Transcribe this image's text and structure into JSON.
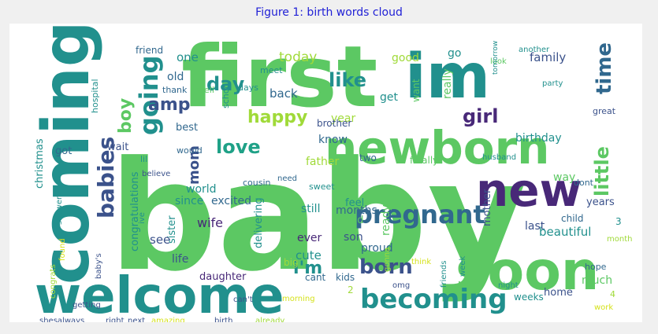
{
  "title": "Figure 1: birth words cloud",
  "palette": {
    "green": "#5cc863",
    "lightgreen": "#a0da39",
    "teal": "#21908d",
    "blue": "#31688e",
    "navy": "#3b528b",
    "indigo": "#482878",
    "yellow": "#d5e21a",
    "cyan": "#1fa187"
  },
  "words": [
    {
      "text": "baby",
      "color": "green"
    },
    {
      "text": "first",
      "color": "green"
    },
    {
      "text": "im",
      "color": "teal"
    },
    {
      "text": "newborn",
      "color": "green"
    },
    {
      "text": "coming",
      "color": "teal"
    },
    {
      "text": "welcome",
      "color": "teal"
    },
    {
      "text": "new",
      "color": "indigo"
    },
    {
      "text": "soon",
      "color": "green"
    },
    {
      "text": "pregnant",
      "color": "blue"
    },
    {
      "text": "becoming",
      "color": "teal"
    },
    {
      "text": "born",
      "color": "navy"
    },
    {
      "text": "i'm",
      "color": "teal"
    },
    {
      "text": "going",
      "color": "teal"
    },
    {
      "text": "babies",
      "color": "navy"
    },
    {
      "text": "boy",
      "color": "green"
    },
    {
      "text": "amp",
      "color": "navy"
    },
    {
      "text": "day",
      "color": "teal"
    },
    {
      "text": "like",
      "color": "teal"
    },
    {
      "text": "time",
      "color": "blue"
    },
    {
      "text": "girl",
      "color": "indigo"
    },
    {
      "text": "little",
      "color": "green"
    },
    {
      "text": "love",
      "color": "cyan"
    },
    {
      "text": "happy",
      "color": "lightgreen"
    },
    {
      "text": "mom",
      "color": "navy"
    },
    {
      "text": "today",
      "color": "lightgreen"
    },
    {
      "text": "congratulations",
      "color": "teal"
    },
    {
      "text": "christmas",
      "color": "teal"
    },
    {
      "text": "one",
      "color": "teal"
    },
    {
      "text": "old",
      "color": "blue"
    },
    {
      "text": "good",
      "color": "lightgreen"
    },
    {
      "text": "family",
      "color": "navy"
    },
    {
      "text": "go",
      "color": "teal"
    },
    {
      "text": "back",
      "color": "blue"
    },
    {
      "text": "year",
      "color": "lightgreen"
    },
    {
      "text": "get",
      "color": "teal"
    },
    {
      "text": "really",
      "color": "green"
    },
    {
      "text": "want",
      "color": "green"
    },
    {
      "text": "know",
      "color": "blue"
    },
    {
      "text": "father",
      "color": "lightgreen"
    },
    {
      "text": "birthday",
      "color": "teal"
    },
    {
      "text": "two",
      "color": "blue"
    },
    {
      "text": "finally",
      "color": "green"
    },
    {
      "text": "brother",
      "color": "navy"
    },
    {
      "text": "friend",
      "color": "blue"
    },
    {
      "text": "wait",
      "color": "navy"
    },
    {
      "text": "got",
      "color": "blue"
    },
    {
      "text": "best",
      "color": "blue"
    },
    {
      "text": "world",
      "color": "teal"
    },
    {
      "text": "since",
      "color": "teal"
    },
    {
      "text": "excited",
      "color": "blue"
    },
    {
      "text": "still",
      "color": "teal"
    },
    {
      "text": "months",
      "color": "blue"
    },
    {
      "text": "way",
      "color": "green"
    },
    {
      "text": "years",
      "color": "navy"
    },
    {
      "text": "mother",
      "color": "navy"
    },
    {
      "text": "wife",
      "color": "indigo"
    },
    {
      "text": "sister",
      "color": "teal"
    },
    {
      "text": "delivering",
      "color": "teal"
    },
    {
      "text": "see",
      "color": "navy"
    },
    {
      "text": "ever",
      "color": "indigo"
    },
    {
      "text": "cute",
      "color": "teal"
    },
    {
      "text": "dad",
      "color": "green"
    },
    {
      "text": "son",
      "color": "navy"
    },
    {
      "text": "ready",
      "color": "green"
    },
    {
      "text": "feel",
      "color": "teal"
    },
    {
      "text": "last",
      "color": "navy"
    },
    {
      "text": "beautiful",
      "color": "teal"
    },
    {
      "text": "proud",
      "color": "blue"
    },
    {
      "text": "life",
      "color": "navy"
    },
    {
      "text": "daughter",
      "color": "indigo"
    },
    {
      "text": "cant",
      "color": "blue"
    },
    {
      "text": "kids",
      "color": "blue"
    },
    {
      "text": "big",
      "color": "lightgreen"
    },
    {
      "text": "much",
      "color": "green"
    },
    {
      "text": "hope",
      "color": "blue"
    },
    {
      "text": "home",
      "color": "navy"
    },
    {
      "text": "weeks",
      "color": "teal"
    },
    {
      "text": "night",
      "color": "teal"
    },
    {
      "text": "morning",
      "color": "yellow"
    },
    {
      "text": "can't",
      "color": "navy"
    },
    {
      "text": "already",
      "color": "lightgreen"
    },
    {
      "text": "birth",
      "color": "navy"
    },
    {
      "text": "amazing",
      "color": "yellow"
    },
    {
      "text": "next",
      "color": "navy"
    },
    {
      "text": "right",
      "color": "navy"
    },
    {
      "text": "shesalways",
      "color": "navy"
    },
    {
      "text": "getting",
      "color": "navy"
    },
    {
      "text": "congrats",
      "color": "lightgreen"
    },
    {
      "text": "found",
      "color": "yellow"
    },
    {
      "text": "shower",
      "color": "teal"
    },
    {
      "text": "baby's",
      "color": "navy"
    },
    {
      "text": "child",
      "color": "blue"
    },
    {
      "text": "dont",
      "color": "blue"
    },
    {
      "text": "week",
      "color": "teal"
    },
    {
      "text": "friends",
      "color": "teal"
    },
    {
      "text": "think",
      "color": "yellow"
    },
    {
      "text": "gonna",
      "color": "lightgreen"
    },
    {
      "text": "sweet",
      "color": "teal"
    },
    {
      "text": "cousin",
      "color": "blue"
    },
    {
      "text": "hospital",
      "color": "teal"
    },
    {
      "text": "school",
      "color": "teal"
    },
    {
      "text": "meet",
      "color": "teal"
    },
    {
      "text": "days",
      "color": "teal"
    },
    {
      "text": "well",
      "color": "green"
    },
    {
      "text": "thank",
      "color": "blue"
    },
    {
      "text": "would",
      "color": "blue"
    },
    {
      "text": "lil",
      "color": "teal"
    },
    {
      "text": "believe",
      "color": "navy"
    },
    {
      "text": "ive",
      "color": "teal"
    },
    {
      "text": "need",
      "color": "blue"
    },
    {
      "text": "husband",
      "color": "teal"
    },
    {
      "text": "another",
      "color": "teal"
    },
    {
      "text": "great",
      "color": "navy"
    },
    {
      "text": "party",
      "color": "teal"
    },
    {
      "text": "look",
      "color": "green"
    },
    {
      "text": "month",
      "color": "lightgreen"
    },
    {
      "text": "work",
      "color": "yellow"
    },
    {
      "text": "2",
      "color": "lightgreen"
    },
    {
      "text": "3",
      "color": "teal"
    },
    {
      "text": "4",
      "color": "lightgreen"
    },
    {
      "text": "omg",
      "color": "navy"
    },
    {
      "text": "tomorrow",
      "color": "teal"
    }
  ]
}
